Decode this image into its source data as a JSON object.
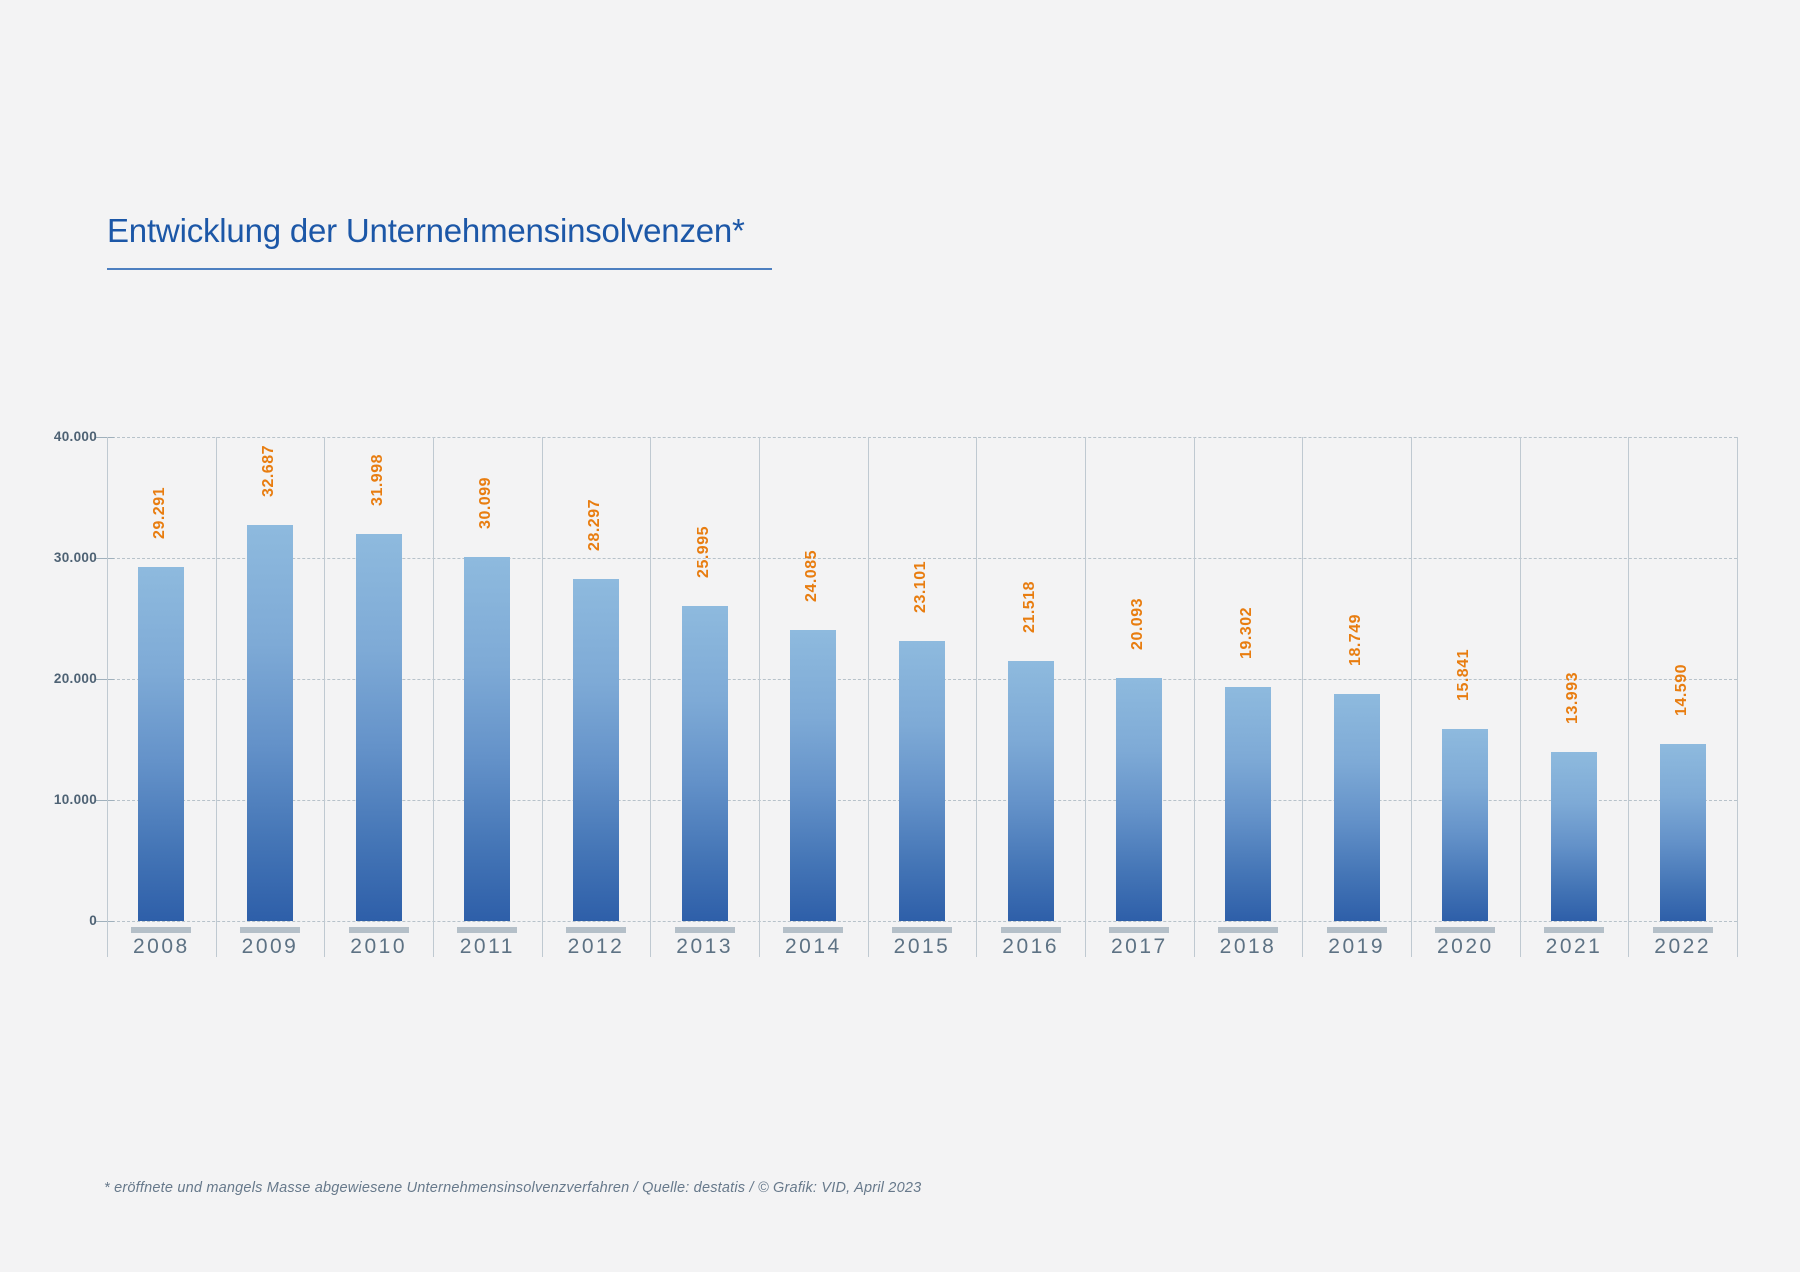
{
  "page": {
    "background_color": "#f3f3f4"
  },
  "header": {
    "title": "Entwicklung der Unternehmensinsolvenzen*",
    "title_color": "#1c57a7",
    "underline_color": "#4d7fc0"
  },
  "footer": {
    "note": "* eröffnete und mangels Masse abgewiesene Unternehmensinsolvenzverfahren / Quelle: destatis / © Grafik: VID, April 2023",
    "color": "#67798b"
  },
  "chart_data": {
    "type": "bar",
    "title": "Entwicklung der Unternehmensinsolvenzen*",
    "categories": [
      "2008",
      "2009",
      "2010",
      "2011",
      "2012",
      "2013",
      "2014",
      "2015",
      "2016",
      "2017",
      "2018",
      "2019",
      "2020",
      "2021",
      "2022"
    ],
    "values": [
      29291,
      32687,
      31998,
      30099,
      28297,
      25995,
      24085,
      23101,
      21518,
      20093,
      19302,
      18749,
      15841,
      13993,
      14590
    ],
    "value_labels": [
      "29.291",
      "32.687",
      "31.998",
      "30.099",
      "28.297",
      "25.995",
      "24.085",
      "23.101",
      "21.518",
      "20.093",
      "19.302",
      "18.749",
      "15.841",
      "13.993",
      "14.590"
    ],
    "value_label_rotation_deg": -90,
    "xlabel": "",
    "ylabel": "",
    "ylim": [
      0,
      40000
    ],
    "yticks": [
      {
        "value": 40000,
        "label": "40.000"
      },
      {
        "value": 30000,
        "label": "30.000"
      },
      {
        "value": 20000,
        "label": "20.000"
      },
      {
        "value": 10000,
        "label": "10.000"
      },
      {
        "value": 0,
        "label": "0"
      }
    ],
    "grid": "horizontal dashed lines on, vertical solid column separators on",
    "legend_position": "none",
    "colors": {
      "bar_gradient_top": "#8ebade",
      "bar_gradient_bottom": "#2e5fa9",
      "value_label": "#e87d10",
      "axis_tick_label": "#4e6274",
      "category_label": "#5d7284",
      "category_base_marker": "#b4bfc8",
      "gridline": "#b7c2ca"
    }
  }
}
